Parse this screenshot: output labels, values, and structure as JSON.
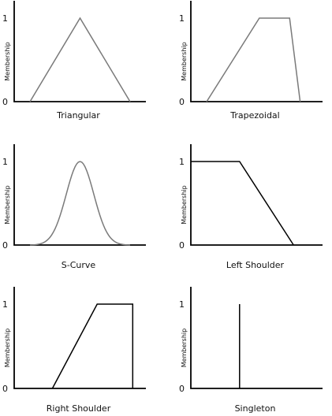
{
  "axis": {
    "y_label": "Membership",
    "y_tick_high": "1",
    "y_tick_low": "0"
  },
  "colors": {
    "axis": "#000000",
    "gray_curve": "#7a7a7a",
    "black_curve": "#000000"
  },
  "panels": [
    {
      "id": "triangular",
      "title": "Triangular",
      "shape": "polyline",
      "color": "gray",
      "points": [
        [
          0.12,
          0
        ],
        [
          0.5,
          1
        ],
        [
          0.88,
          0
        ]
      ]
    },
    {
      "id": "trapezoidal",
      "title": "Trapezoidal",
      "shape": "polyline",
      "color": "gray",
      "points": [
        [
          0.12,
          0
        ],
        [
          0.52,
          1
        ],
        [
          0.75,
          1
        ],
        [
          0.83,
          0
        ]
      ]
    },
    {
      "id": "s-curve",
      "title": "S-Curve",
      "shape": "gaussian",
      "color": "gray",
      "center": 0.5,
      "sigma": 0.105,
      "range": [
        0.12,
        0.88
      ]
    },
    {
      "id": "left-shoulder",
      "title": "Left Shoulder",
      "shape": "polyline",
      "color": "black",
      "points": [
        [
          0,
          1
        ],
        [
          0.37,
          1
        ],
        [
          0.78,
          0
        ]
      ]
    },
    {
      "id": "right-shoulder",
      "title": "Right Shoulder",
      "shape": "polyline",
      "color": "black",
      "points": [
        [
          0.29,
          0
        ],
        [
          0.63,
          1
        ],
        [
          0.9,
          1
        ],
        [
          0.9,
          0
        ]
      ]
    },
    {
      "id": "singleton",
      "title": "Singleton",
      "shape": "polyline",
      "color": "black",
      "points": [
        [
          0.37,
          0
        ],
        [
          0.37,
          1
        ]
      ]
    }
  ]
}
